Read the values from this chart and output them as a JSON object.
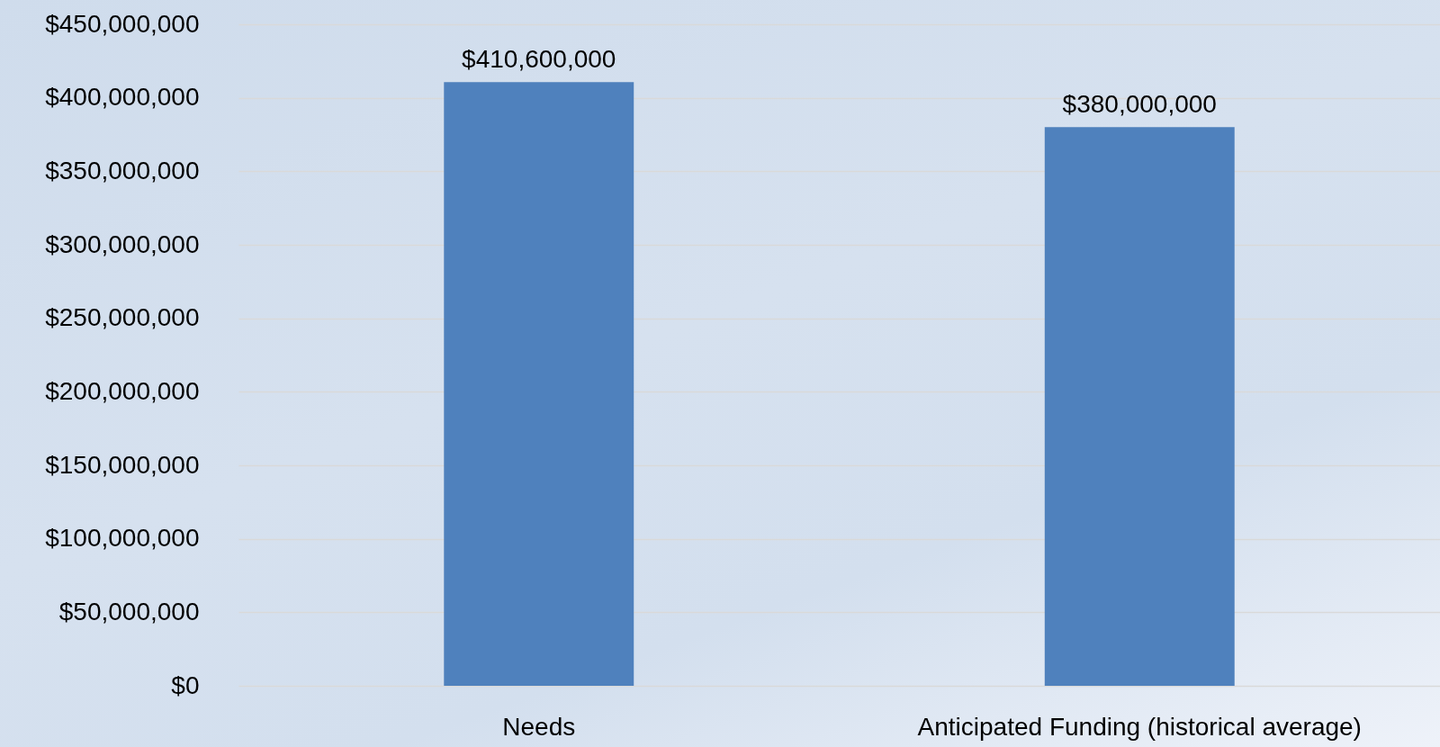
{
  "chart_data": {
    "type": "bar",
    "categories": [
      "Needs",
      "Anticipated Funding (historical average)"
    ],
    "values": [
      410600000,
      380000000
    ],
    "value_labels": [
      "$410,600,000",
      "$380,000,000"
    ],
    "color": "#4f81bd",
    "ylim": [
      0,
      450000000
    ],
    "yticks": [
      {
        "value": 0,
        "label": "$0"
      },
      {
        "value": 50000000,
        "label": "$50,000,000"
      },
      {
        "value": 100000000,
        "label": "$100,000,000"
      },
      {
        "value": 150000000,
        "label": "$150,000,000"
      },
      {
        "value": 200000000,
        "label": "$200,000,000"
      },
      {
        "value": 250000000,
        "label": "$250,000,000"
      },
      {
        "value": 300000000,
        "label": "$300,000,000"
      },
      {
        "value": 350000000,
        "label": "$350,000,000"
      },
      {
        "value": 400000000,
        "label": "$400,000,000"
      },
      {
        "value": 450000000,
        "label": "$450,000,000"
      }
    ],
    "grid": "y"
  }
}
